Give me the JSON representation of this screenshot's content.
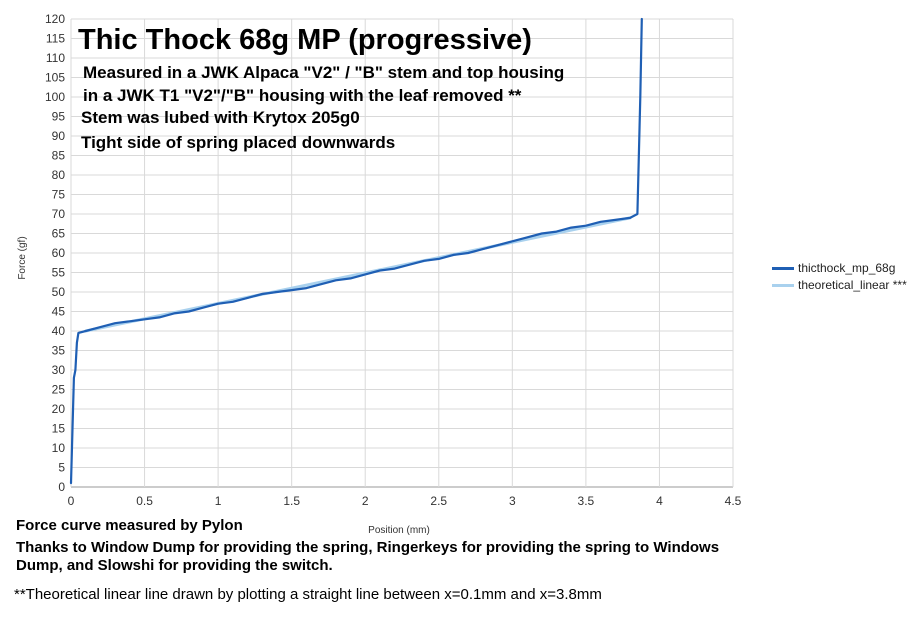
{
  "chart_data": {
    "type": "line",
    "title": "Thic Thock 68g MP (progressive)",
    "subtitle_lines": [
      "Measured in a JWK Alpaca \"V2\" / \"B\" stem and top housing",
      "in a JWK T1 \"V2\"/\"B\" housing with the leaf removed **",
      "Stem was lubed with Krytox 205g0",
      "Tight side of spring placed downwards"
    ],
    "xlabel": "Position (mm)",
    "ylabel": "Force (gf)",
    "xlim": [
      0,
      4.5
    ],
    "ylim": [
      0,
      120
    ],
    "xticks": [
      "0",
      "0.5",
      "1",
      "1.5",
      "2",
      "2.5",
      "3",
      "3.5",
      "4",
      "4.5"
    ],
    "yticks": [
      "0",
      "5",
      "10",
      "15",
      "20",
      "25",
      "30",
      "35",
      "40",
      "45",
      "50",
      "55",
      "60",
      "65",
      "70",
      "75",
      "80",
      "85",
      "90",
      "95",
      "100",
      "105",
      "110",
      "115",
      "120"
    ],
    "grid": true,
    "legend_position": "right",
    "series": [
      {
        "name": "thicthock_mp_68g",
        "color": "#1f5fb4",
        "x": [
          0,
          0.01,
          0.02,
          0.03,
          0.04,
          0.05,
          0.1,
          0.2,
          0.3,
          0.4,
          0.5,
          0.6,
          0.7,
          0.8,
          0.9,
          1.0,
          1.1,
          1.2,
          1.3,
          1.4,
          1.5,
          1.6,
          1.7,
          1.8,
          1.9,
          2.0,
          2.1,
          2.2,
          2.3,
          2.4,
          2.5,
          2.6,
          2.7,
          2.8,
          2.9,
          3.0,
          3.1,
          3.2,
          3.3,
          3.4,
          3.5,
          3.6,
          3.7,
          3.8,
          3.85,
          3.87,
          3.88
        ],
        "y": [
          1,
          15,
          28,
          30,
          37,
          39.5,
          40,
          41,
          42,
          42.5,
          43,
          43.5,
          44.5,
          45,
          46,
          47,
          47.5,
          48.5,
          49.5,
          50,
          50.5,
          51,
          52,
          53,
          53.5,
          54.5,
          55.5,
          56,
          57,
          58,
          58.5,
          59.5,
          60,
          61,
          62,
          63,
          64,
          65,
          65.5,
          66.5,
          67,
          68,
          68.5,
          69,
          70,
          100,
          120
        ]
      },
      {
        "name": "theoretical_linear ***",
        "color": "#a9d1ee",
        "x": [
          0.1,
          3.8
        ],
        "y": [
          40,
          69
        ]
      }
    ]
  },
  "credits": {
    "line1": "Force curve measured by Pylon",
    "line2": "Thanks to Window Dump for providing the spring, Ringerkeys for providing the spring to Windows Dump, and Slowshi for providing the switch."
  },
  "footnote": "**Theoretical linear line drawn by plotting a straight line between x=0.1mm and x=3.8mm"
}
